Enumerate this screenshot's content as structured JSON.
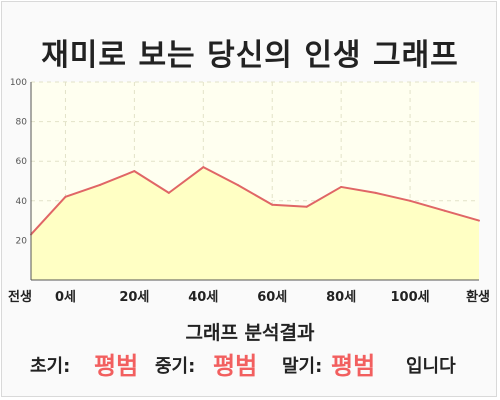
{
  "title": "재미로 보는 당신의 인생 그래프",
  "result": {
    "heading": "그래프 분석결과",
    "early_label": "초기:",
    "early_value": "평범",
    "middle_label": "중기:",
    "middle_value": "평범",
    "late_label": "말기:",
    "late_value": "평범",
    "suffix": "입니다"
  },
  "colors": {
    "line": "#e06666",
    "fill": "#ffffc4",
    "plot_bg": "#fffff0",
    "result_value": "#f25f5f"
  },
  "chart_data": {
    "type": "area",
    "title": "",
    "xlabel": "",
    "ylabel": "",
    "ylim": [
      0,
      100
    ],
    "yticks": [
      20,
      40,
      60,
      80,
      100
    ],
    "xticks": [
      "전생",
      "0세",
      "20세",
      "40세",
      "60세",
      "80세",
      "100세",
      "환생"
    ],
    "grid": true,
    "x": [
      "전생",
      "0세",
      "",
      "20세",
      "",
      "40세",
      "",
      "60세",
      "",
      "80세",
      "",
      "100세",
      "",
      "환생"
    ],
    "values": [
      23,
      42,
      48,
      55,
      44,
      57,
      48,
      38,
      37,
      47,
      44,
      40,
      35,
      30
    ]
  }
}
